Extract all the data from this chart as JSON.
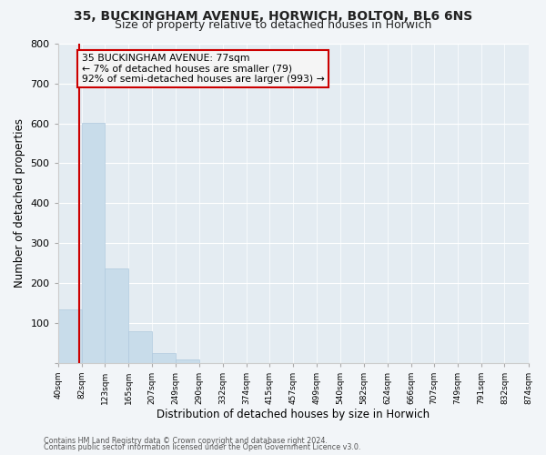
{
  "title1": "35, BUCKINGHAM AVENUE, HORWICH, BOLTON, BL6 6NS",
  "title2": "Size of property relative to detached houses in Horwich",
  "xlabel": "Distribution of detached houses by size in Horwich",
  "ylabel": "Number of detached properties",
  "bar_edges": [
    40,
    82,
    123,
    165,
    207,
    249,
    290,
    332,
    374,
    415,
    457,
    499,
    540,
    582,
    624,
    666,
    707,
    749,
    791,
    832,
    874
  ],
  "bar_heights": [
    133,
    602,
    236,
    78,
    24,
    9,
    0,
    0,
    0,
    0,
    0,
    0,
    0,
    0,
    0,
    0,
    0,
    0,
    0,
    0
  ],
  "bar_color": "#c8dcea",
  "bar_edgecolor": "#b0cade",
  "property_line_x": 77,
  "property_line_color": "#cc0000",
  "annotation_line1": "35 BUCKINGHAM AVENUE: 77sqm",
  "annotation_line2": "← 7% of detached houses are smaller (79)",
  "annotation_line3": "92% of semi-detached houses are larger (993) →",
  "annotation_box_edgecolor": "#cc0000",
  "annotation_box_facecolor": "#f5f5f5",
  "ylim": [
    0,
    800
  ],
  "yticks": [
    0,
    100,
    200,
    300,
    400,
    500,
    600,
    700,
    800
  ],
  "tick_labels": [
    "40sqm",
    "82sqm",
    "123sqm",
    "165sqm",
    "207sqm",
    "249sqm",
    "290sqm",
    "332sqm",
    "374sqm",
    "415sqm",
    "457sqm",
    "499sqm",
    "540sqm",
    "582sqm",
    "624sqm",
    "666sqm",
    "707sqm",
    "749sqm",
    "791sqm",
    "832sqm",
    "874sqm"
  ],
  "footer1": "Contains HM Land Registry data © Crown copyright and database right 2024.",
  "footer2": "Contains public sector information licensed under the Open Government Licence v3.0.",
  "bg_color": "#f2f5f8",
  "plot_bg_color": "#e4ecf2",
  "grid_color": "#ffffff",
  "title1_fontsize": 10,
  "title2_fontsize": 9
}
